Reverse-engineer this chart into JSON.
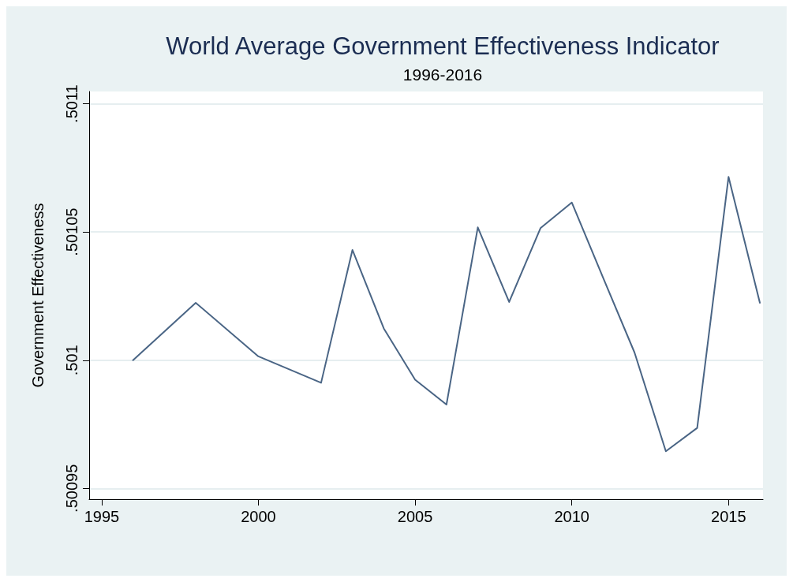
{
  "chart_data": {
    "type": "line",
    "title": "World Average Government Effectiveness Indicator",
    "subtitle": "1996-2016",
    "ylabel": "Government Effectiveness",
    "x": [
      1996,
      1998,
      2000,
      2002,
      2003,
      2004,
      2005,
      2006,
      2007,
      2008,
      2009,
      2010,
      2011,
      2012,
      2013,
      2014,
      2015,
      2016
    ],
    "series": [
      {
        "color": "#4a6585",
        "values": [
          0.501,
          0.5010224,
          0.5010015,
          0.5009912,
          0.501043,
          0.5010124,
          0.5009924,
          0.5009827,
          0.5010518,
          0.5010227,
          0.5010515,
          0.5010615,
          0.5010321,
          0.501003,
          0.5009645,
          0.5009736,
          0.5010715,
          0.5010224
        ]
      }
    ],
    "xlim": [
      1994.6,
      2016.1
    ],
    "xticks": [
      1995,
      2000,
      2005,
      2010,
      2015
    ],
    "ylim": [
      0.5009458,
      0.5011048
    ],
    "yticks": [
      {
        "value": 0.50095,
        "label": ".50095"
      },
      {
        "value": 0.501,
        "label": ".501"
      },
      {
        "value": 0.50105,
        "label": ".50105"
      },
      {
        "value": 0.5011,
        "label": ".5011"
      }
    ],
    "grid": "y",
    "marker": "none",
    "line_style": "solid"
  }
}
